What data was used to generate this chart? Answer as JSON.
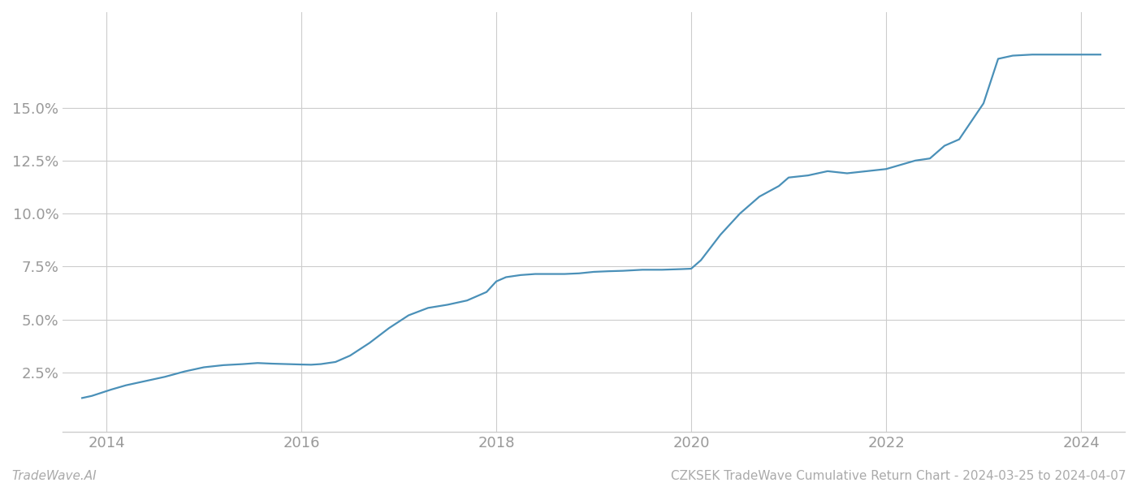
{
  "title": "CZKSEK TradeWave Cumulative Return Chart - 2024-03-25 to 2024-04-07",
  "watermark": "TradeWave.AI",
  "line_color": "#4a90b8",
  "background_color": "#ffffff",
  "grid_color": "#cccccc",
  "x_years": [
    2013.75,
    2013.85,
    2013.95,
    2014.05,
    2014.2,
    2014.4,
    2014.6,
    2014.8,
    2015.0,
    2015.2,
    2015.4,
    2015.55,
    2015.7,
    2015.85,
    2016.0,
    2016.1,
    2016.2,
    2016.35,
    2016.5,
    2016.7,
    2016.9,
    2017.1,
    2017.3,
    2017.5,
    2017.7,
    2017.9,
    2018.0,
    2018.1,
    2018.25,
    2018.4,
    2018.55,
    2018.7,
    2018.85,
    2019.0,
    2019.15,
    2019.3,
    2019.5,
    2019.7,
    2019.9,
    2020.0,
    2020.1,
    2020.3,
    2020.5,
    2020.7,
    2020.9,
    2021.0,
    2021.2,
    2021.4,
    2021.6,
    2021.8,
    2022.0,
    2022.15,
    2022.3,
    2022.45,
    2022.6,
    2022.75,
    2023.0,
    2023.15,
    2023.3,
    2023.5,
    2024.0,
    2024.2
  ],
  "y_values": [
    1.3,
    1.4,
    1.55,
    1.7,
    1.9,
    2.1,
    2.3,
    2.55,
    2.75,
    2.85,
    2.9,
    2.95,
    2.92,
    2.9,
    2.88,
    2.87,
    2.9,
    3.0,
    3.3,
    3.9,
    4.6,
    5.2,
    5.55,
    5.7,
    5.9,
    6.3,
    6.8,
    7.0,
    7.1,
    7.15,
    7.15,
    7.15,
    7.18,
    7.25,
    7.28,
    7.3,
    7.35,
    7.35,
    7.38,
    7.4,
    7.8,
    9.0,
    10.0,
    10.8,
    11.3,
    11.7,
    11.8,
    12.0,
    11.9,
    12.0,
    12.1,
    12.3,
    12.5,
    12.6,
    13.2,
    13.5,
    15.2,
    17.3,
    17.45,
    17.5,
    17.5,
    17.5
  ],
  "xlim": [
    2013.55,
    2024.45
  ],
  "ylim": [
    -0.3,
    19.5
  ],
  "yticks": [
    2.5,
    5.0,
    7.5,
    10.0,
    12.5,
    15.0
  ],
  "xticks": [
    2014,
    2016,
    2018,
    2020,
    2022,
    2024
  ],
  "tick_label_color": "#999999",
  "tick_fontsize": 13,
  "footer_fontsize": 11,
  "line_width": 1.6,
  "spine_color": "#cccccc"
}
